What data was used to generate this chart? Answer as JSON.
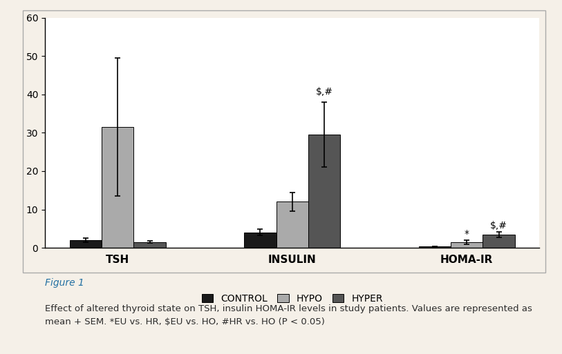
{
  "groups": [
    "TSH",
    "INSULIN",
    "HOMA-IR"
  ],
  "series": [
    "CONTROL",
    "HYPO",
    "HYPER"
  ],
  "colors": [
    "#1a1a1a",
    "#aaaaaa",
    "#555555"
  ],
  "values": [
    [
      2.0,
      31.5,
      1.5
    ],
    [
      4.0,
      12.0,
      29.5
    ],
    [
      0.3,
      1.5,
      3.5
    ]
  ],
  "errors": [
    [
      0.5,
      18.0,
      0.3
    ],
    [
      0.8,
      2.5,
      8.5
    ],
    [
      0.1,
      0.5,
      0.7
    ]
  ],
  "ylim": [
    0,
    60
  ],
  "yticks": [
    0,
    10,
    20,
    30,
    40,
    50,
    60
  ],
  "background_color": "#ffffff",
  "outer_background": "#f5f0e8",
  "bar_width": 0.22,
  "legend_labels": [
    "CONTROL",
    "HYPO",
    "HYPER"
  ],
  "figure_caption": "Figure 1",
  "caption_text": "Effect of altered thyroid state on TSH, insulin HOMA-IR levels in study patients. Values are represented as\nmean + SEM. *EU vs. HR, $EU vs. HO, #HR vs. HO (P < 0.05)"
}
